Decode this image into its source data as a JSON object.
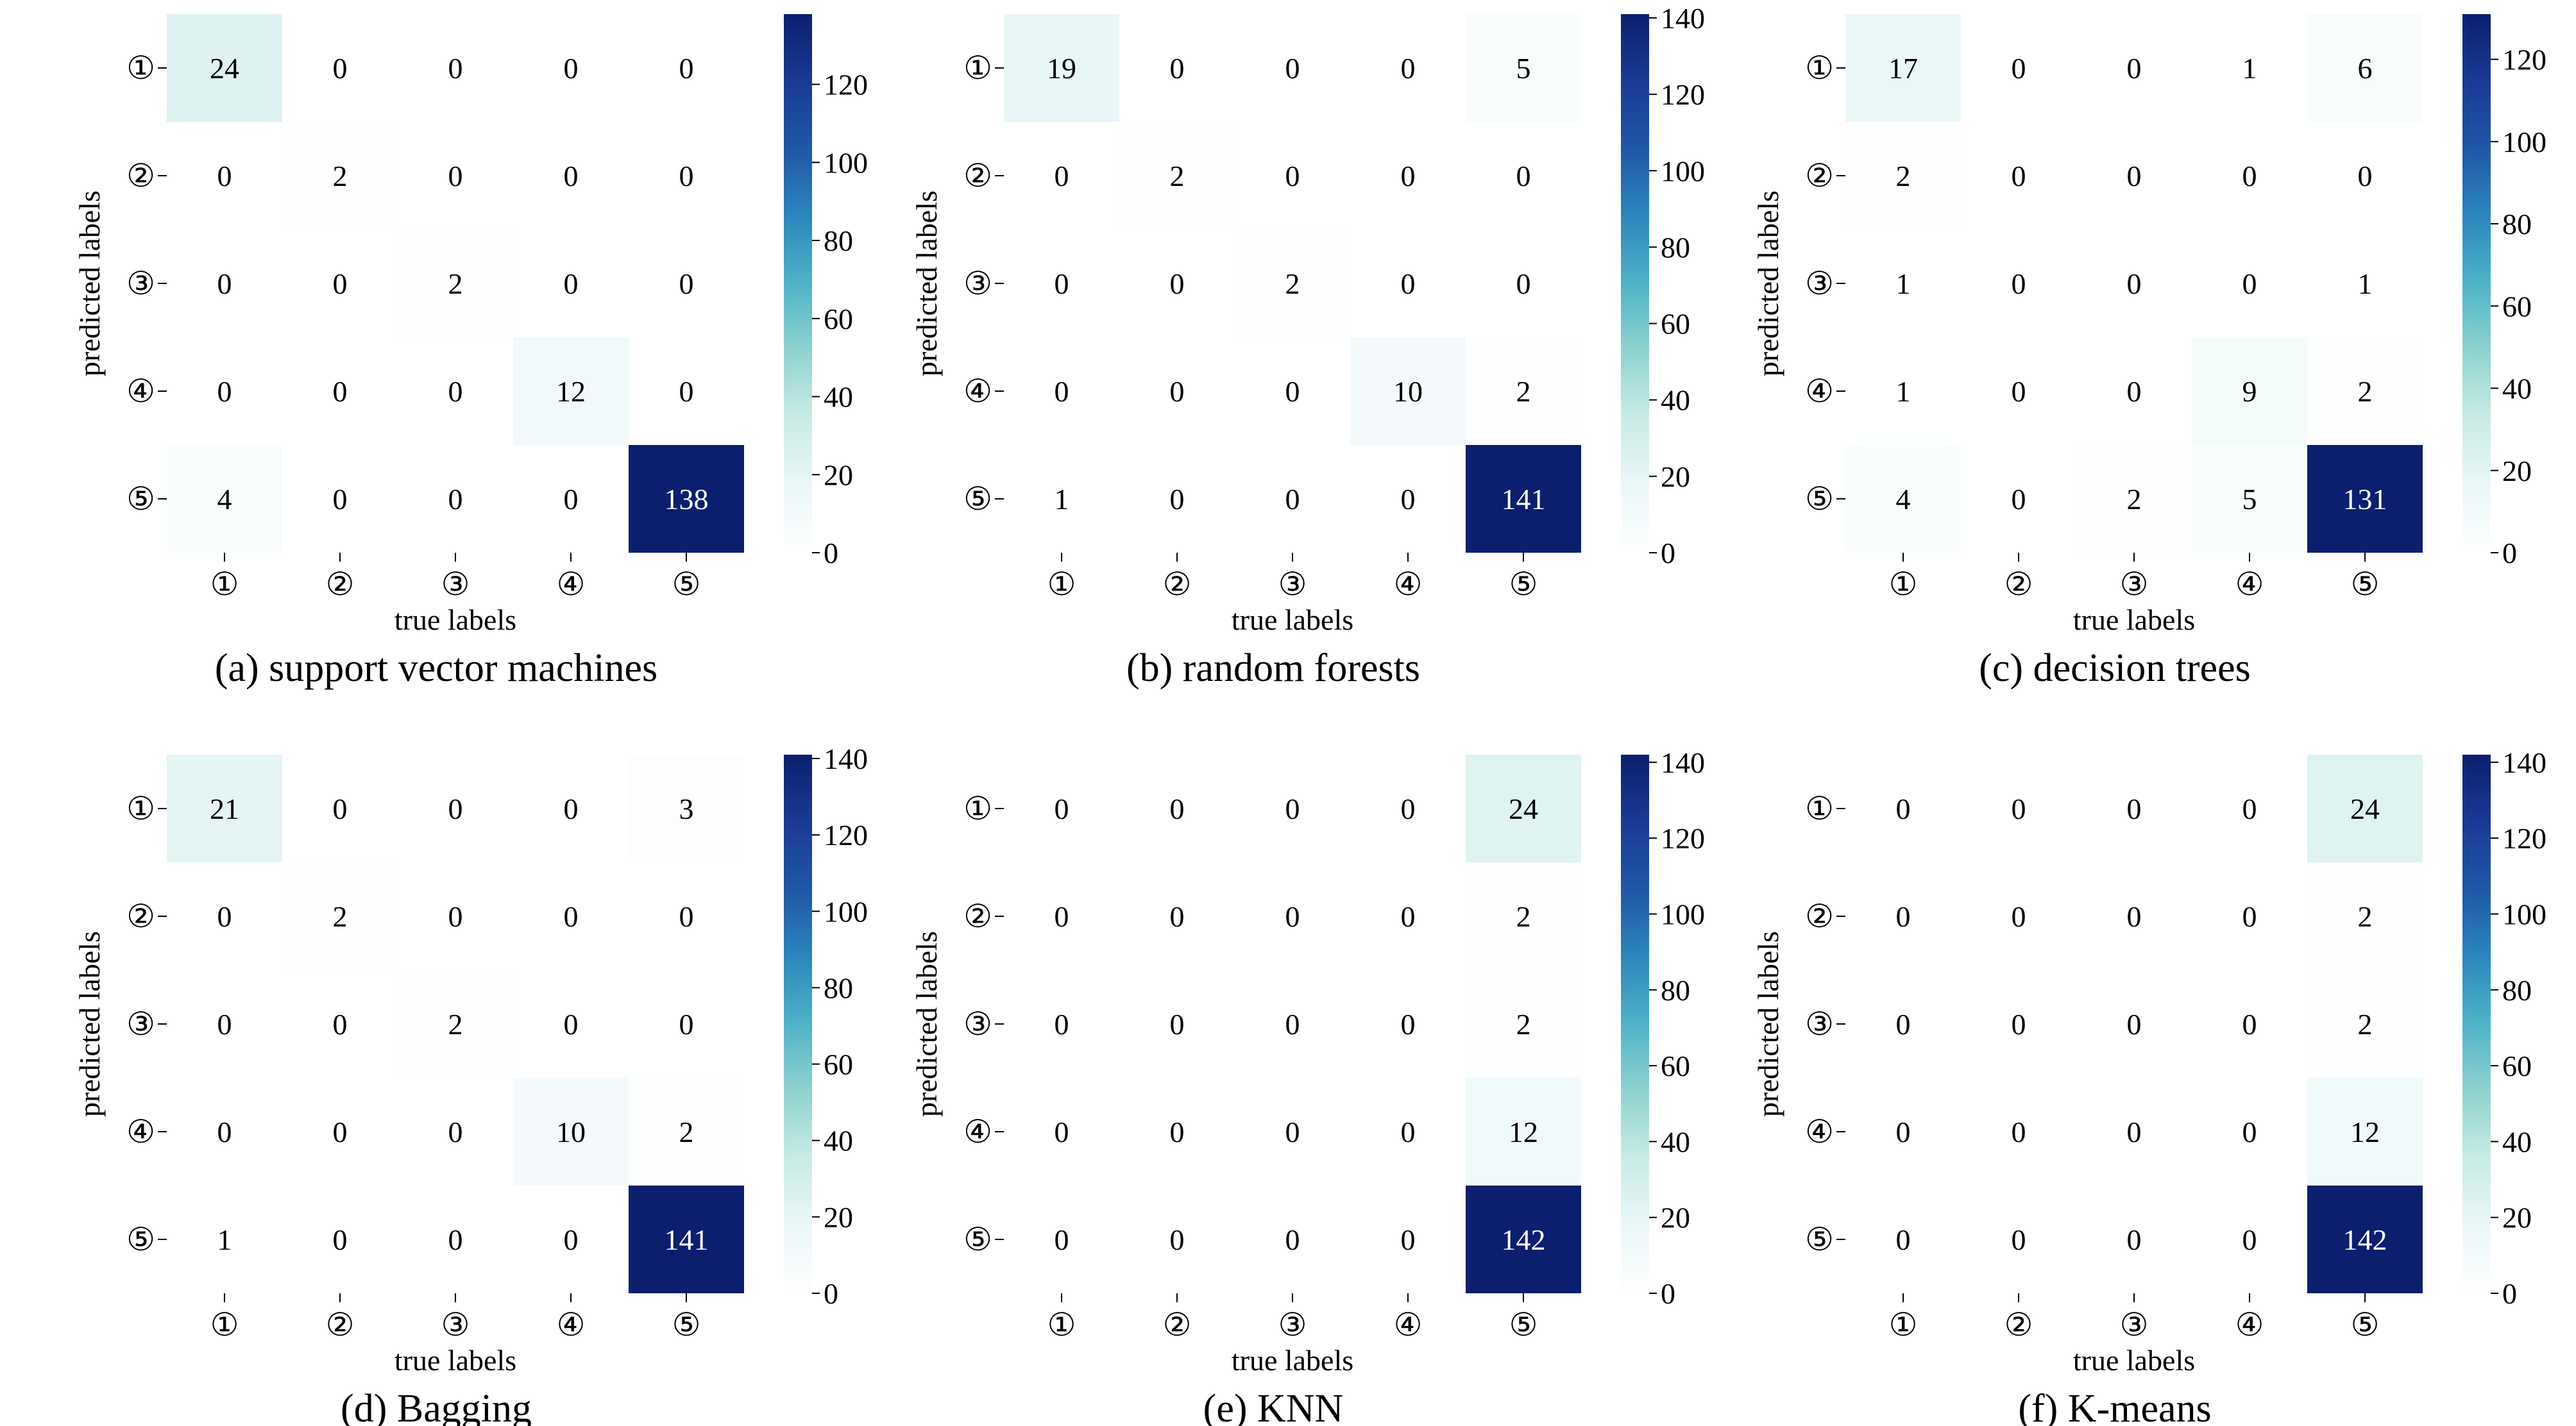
{
  "figure": {
    "row_labels": [
      "①",
      "②",
      "③",
      "④",
      "⑤"
    ],
    "col_labels": [
      "①",
      "②",
      "③",
      "④",
      "⑤"
    ],
    "colormap": [
      "#ffffff",
      "#ebf7f8",
      "#c9ebe5",
      "#8fd3cf",
      "#4fb3c7",
      "#2c86bd",
      "#1f57a6",
      "#1a3a94",
      "#0c1f6e"
    ]
  },
  "chart_data": [
    {
      "type": "heatmap",
      "title": "(a) support vector machines",
      "xlabel": "true labels",
      "ylabel": "predicted labels",
      "rows": [
        "①",
        "②",
        "③",
        "④",
        "⑤"
      ],
      "columns": [
        "①",
        "②",
        "③",
        "④",
        "⑤"
      ],
      "values": [
        [
          24,
          0,
          0,
          0,
          0
        ],
        [
          0,
          2,
          0,
          0,
          0
        ],
        [
          0,
          0,
          2,
          0,
          0
        ],
        [
          0,
          0,
          0,
          12,
          0
        ],
        [
          4,
          0,
          0,
          0,
          138
        ]
      ],
      "colorbar": {
        "min": 0,
        "max": 138,
        "ticks": [
          0,
          20,
          40,
          60,
          80,
          100,
          120
        ]
      }
    },
    {
      "type": "heatmap",
      "title": "(b) random forests",
      "xlabel": "true labels",
      "ylabel": "predicted labels",
      "rows": [
        "①",
        "②",
        "③",
        "④",
        "⑤"
      ],
      "columns": [
        "①",
        "②",
        "③",
        "④",
        "⑤"
      ],
      "values": [
        [
          19,
          0,
          0,
          0,
          5
        ],
        [
          0,
          2,
          0,
          0,
          0
        ],
        [
          0,
          0,
          2,
          0,
          0
        ],
        [
          0,
          0,
          0,
          10,
          2
        ],
        [
          1,
          0,
          0,
          0,
          141
        ]
      ],
      "colorbar": {
        "min": 0,
        "max": 141,
        "ticks": [
          0,
          20,
          40,
          60,
          80,
          100,
          120,
          140
        ]
      }
    },
    {
      "type": "heatmap",
      "title": "(c) decision trees",
      "xlabel": "true labels",
      "ylabel": "predicted labels",
      "rows": [
        "①",
        "②",
        "③",
        "④",
        "⑤"
      ],
      "columns": [
        "①",
        "②",
        "③",
        "④",
        "⑤"
      ],
      "values": [
        [
          17,
          0,
          0,
          1,
          6
        ],
        [
          2,
          0,
          0,
          0,
          0
        ],
        [
          1,
          0,
          0,
          0,
          1
        ],
        [
          1,
          0,
          0,
          9,
          2
        ],
        [
          4,
          0,
          2,
          5,
          131
        ]
      ],
      "colorbar": {
        "min": 0,
        "max": 131,
        "ticks": [
          0,
          20,
          40,
          60,
          80,
          100,
          120
        ]
      }
    },
    {
      "type": "heatmap",
      "title": "(d) Bagging",
      "xlabel": "true labels",
      "ylabel": "predicted labels",
      "rows": [
        "①",
        "②",
        "③",
        "④",
        "⑤"
      ],
      "columns": [
        "①",
        "②",
        "③",
        "④",
        "⑤"
      ],
      "values": [
        [
          21,
          0,
          0,
          0,
          3
        ],
        [
          0,
          2,
          0,
          0,
          0
        ],
        [
          0,
          0,
          2,
          0,
          0
        ],
        [
          0,
          0,
          0,
          10,
          2
        ],
        [
          1,
          0,
          0,
          0,
          141
        ]
      ],
      "colorbar": {
        "min": 0,
        "max": 141,
        "ticks": [
          0,
          20,
          40,
          60,
          80,
          100,
          120,
          140
        ]
      }
    },
    {
      "type": "heatmap",
      "title": "(e) KNN",
      "xlabel": "true labels",
      "ylabel": "predicted labels",
      "rows": [
        "①",
        "②",
        "③",
        "④",
        "⑤"
      ],
      "columns": [
        "①",
        "②",
        "③",
        "④",
        "⑤"
      ],
      "values": [
        [
          0,
          0,
          0,
          0,
          24
        ],
        [
          0,
          0,
          0,
          0,
          2
        ],
        [
          0,
          0,
          0,
          0,
          2
        ],
        [
          0,
          0,
          0,
          0,
          12
        ],
        [
          0,
          0,
          0,
          0,
          142
        ]
      ],
      "colorbar": {
        "min": 0,
        "max": 142,
        "ticks": [
          0,
          20,
          40,
          60,
          80,
          100,
          120,
          140
        ]
      }
    },
    {
      "type": "heatmap",
      "title": "(f) K-means",
      "xlabel": "true labels",
      "ylabel": "predicted labels",
      "rows": [
        "①",
        "②",
        "③",
        "④",
        "⑤"
      ],
      "columns": [
        "①",
        "②",
        "③",
        "④",
        "⑤"
      ],
      "values": [
        [
          0,
          0,
          0,
          0,
          24
        ],
        [
          0,
          0,
          0,
          0,
          2
        ],
        [
          0,
          0,
          0,
          0,
          2
        ],
        [
          0,
          0,
          0,
          0,
          12
        ],
        [
          0,
          0,
          0,
          0,
          142
        ]
      ],
      "colorbar": {
        "min": 0,
        "max": 142,
        "ticks": [
          0,
          20,
          40,
          60,
          80,
          100,
          120,
          140
        ]
      }
    }
  ]
}
